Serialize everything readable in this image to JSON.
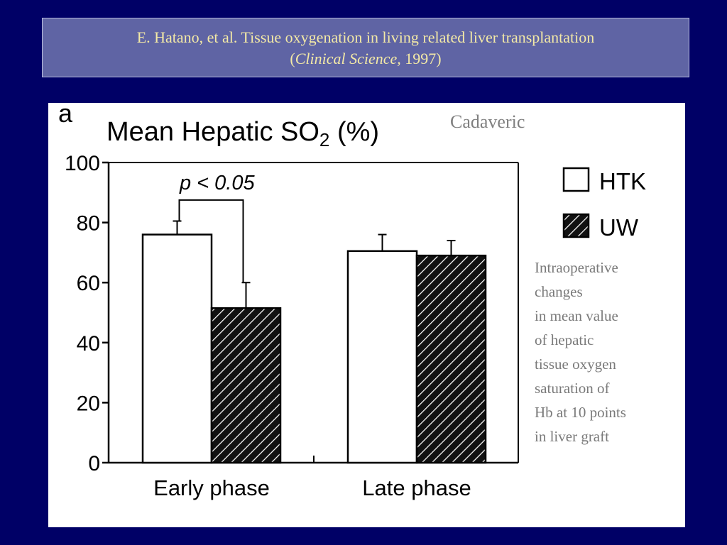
{
  "header": {
    "title_line1": "E. Hatano, et al. Tissue oxygenation in living related liver transplantation",
    "title_open_paren": "(",
    "title_journal": "Clinical Science,",
    "title_year": " 1997)"
  },
  "panel": {
    "letter": "a",
    "label": "Cadaveric",
    "description_lines": [
      "Intraoperative",
      "changes",
      "in mean value",
      "of hepatic",
      "tissue oxygen",
      "saturation of",
      "Hb at  10 points",
      "in liver graft"
    ]
  },
  "chart_data": {
    "type": "bar",
    "title_main": "Mean Hepatic SO",
    "title_sub": "2",
    "title_end": " (%)",
    "categories": [
      "Early phase",
      "Late phase"
    ],
    "series": [
      {
        "name": "HTK",
        "values": [
          76,
          70.5
        ],
        "errors": [
          4.5,
          5.5
        ],
        "fill": "#ffffff"
      },
      {
        "name": "UW",
        "values": [
          51.5,
          69
        ],
        "errors": [
          8.5,
          5
        ],
        "fill": "hatched"
      }
    ],
    "ylim": [
      0,
      100
    ],
    "yticks": [
      0,
      20,
      40,
      60,
      80,
      100
    ],
    "annotation": "p < 0.05",
    "legend_position": "top-right",
    "grid": false
  }
}
